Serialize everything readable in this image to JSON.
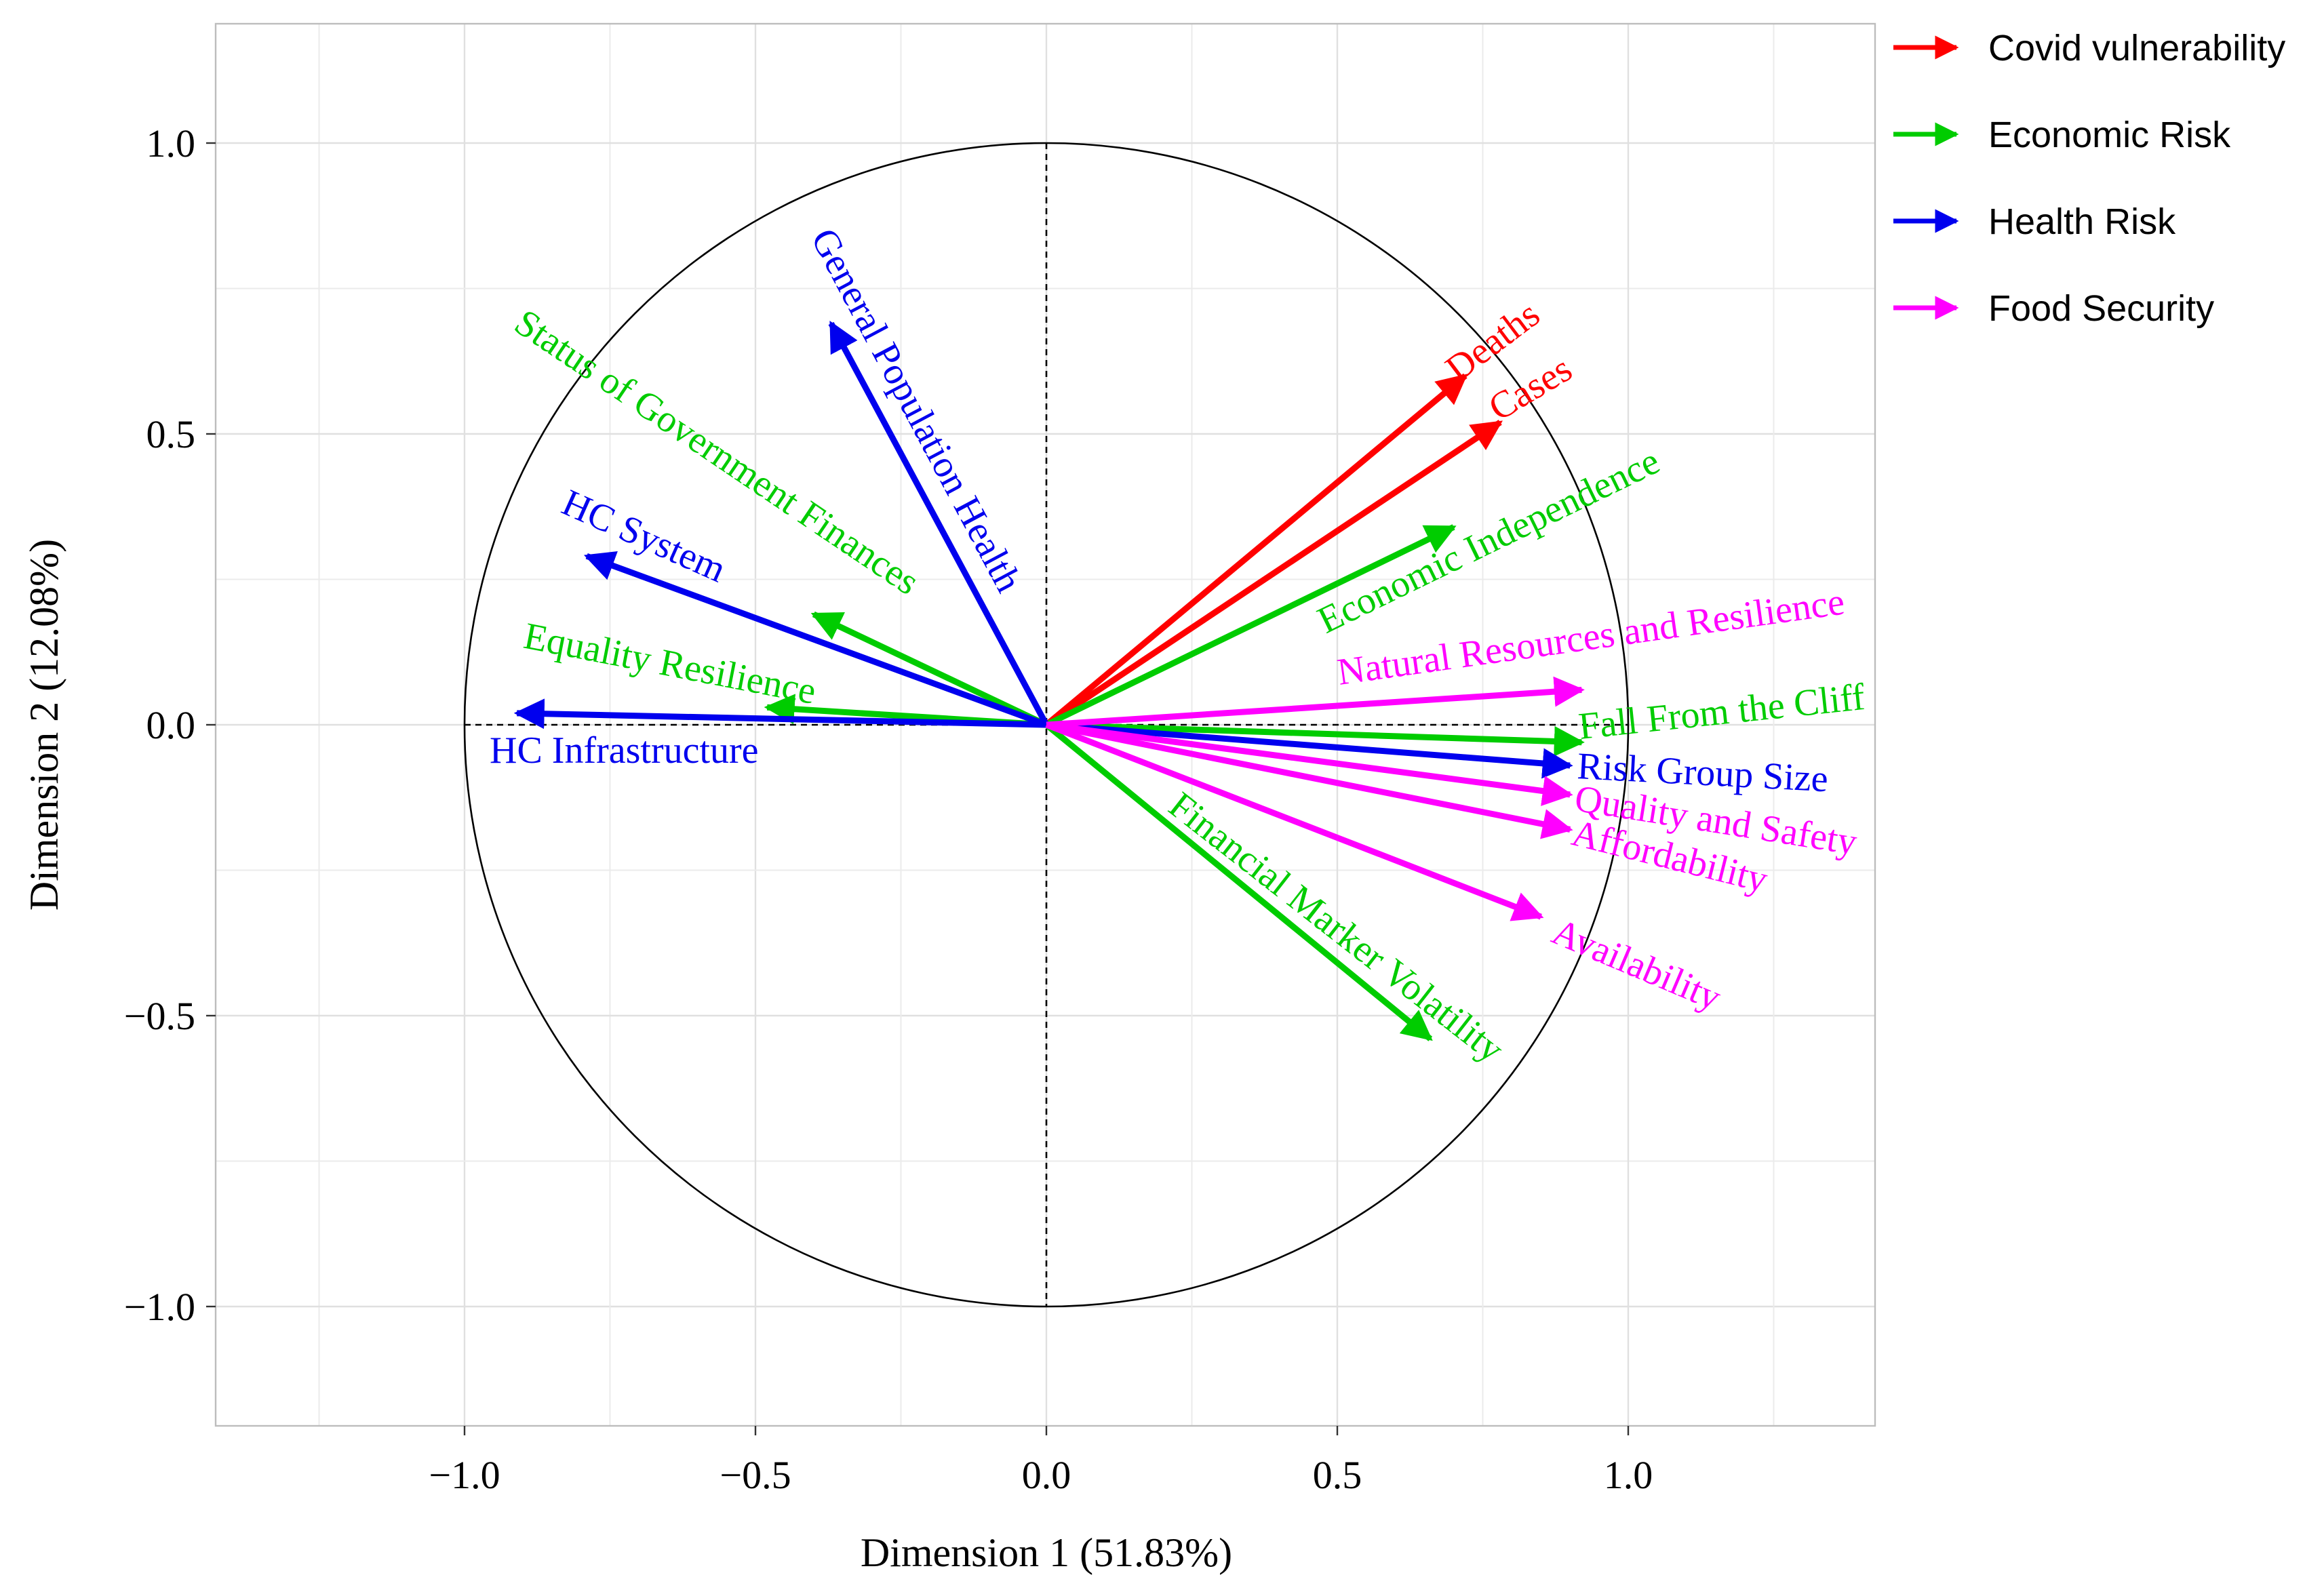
{
  "chart_data": {
    "type": "pca-correlation-circle",
    "xlabel": "Dimension 1 (51.83%)",
    "ylabel": "Dimension 2 (12.08%)",
    "xlim": [
      -1.43,
      1.43
    ],
    "ylim": [
      -1.2,
      1.2
    ],
    "xticks": [
      -1.0,
      -0.5,
      0.0,
      0.5,
      1.0
    ],
    "yticks": [
      -1.0,
      -0.5,
      0.0,
      0.5,
      1.0
    ],
    "xtick_labels": [
      "−1.0",
      "−0.5",
      "0.0",
      "0.5",
      "1.0"
    ],
    "ytick_labels": [
      "−1.0",
      "−0.5",
      "0.0",
      "0.5",
      "1.0"
    ],
    "unit_circle": true,
    "groups": [
      {
        "name": "Covid vulnerability",
        "color": "#ff0000"
      },
      {
        "name": "Economic Risk",
        "color": "#00cc00"
      },
      {
        "name": "Health Risk",
        "color": "#0000ee"
      },
      {
        "name": "Food Security",
        "color": "#ff00ff"
      }
    ],
    "variables": [
      {
        "name": "Deaths",
        "group": 0,
        "x": 0.72,
        "y": 0.6
      },
      {
        "name": "Cases",
        "group": 0,
        "x": 0.78,
        "y": 0.52
      },
      {
        "name": "Economic Independence",
        "group": 1,
        "x": 0.7,
        "y": 0.34
      },
      {
        "name": "Status of Government Finances",
        "group": 1,
        "x": -0.4,
        "y": 0.19
      },
      {
        "name": "Equality Resilience",
        "group": 1,
        "x": -0.48,
        "y": 0.03
      },
      {
        "name": "Fall From the Cliff",
        "group": 1,
        "x": 0.92,
        "y": -0.03
      },
      {
        "name": "Financial Marker Volatility",
        "group": 1,
        "x": 0.66,
        "y": -0.54
      },
      {
        "name": "General Population Health",
        "group": 2,
        "x": -0.37,
        "y": 0.69
      },
      {
        "name": "HC System",
        "group": 2,
        "x": -0.79,
        "y": 0.29
      },
      {
        "name": "HC Infrastructure",
        "group": 2,
        "x": -0.91,
        "y": 0.02
      },
      {
        "name": "Risk Group Size",
        "group": 2,
        "x": 0.9,
        "y": -0.07
      },
      {
        "name": "Natural Resources and Resilience",
        "group": 3,
        "x": 0.92,
        "y": 0.06
      },
      {
        "name": "Quality and Safety",
        "group": 3,
        "x": 0.9,
        "y": -0.12
      },
      {
        "name": "Affordability",
        "group": 3,
        "x": 0.9,
        "y": -0.18
      },
      {
        "name": "Availability",
        "group": 3,
        "x": 0.85,
        "y": -0.33
      }
    ]
  }
}
